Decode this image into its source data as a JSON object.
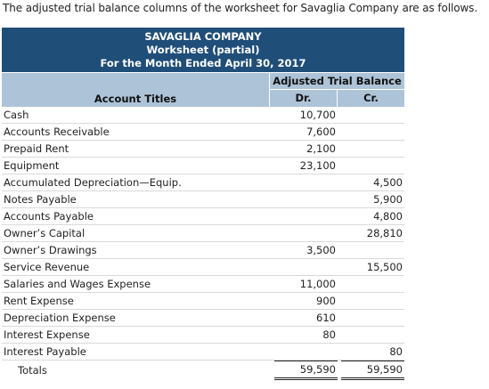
{
  "intro_text": "The adjusted trial balance columns of the worksheet for Savaglia Company are as follows.",
  "worksheet": {
    "company": "SAVAGLIA COMPANY",
    "title": "Worksheet (partial)",
    "period": "For the Month Ended April 30, 2017",
    "section_header": "Adjusted Trial Balance",
    "col_titles": "Account Titles",
    "col_dr": "Dr.",
    "col_cr": "Cr.",
    "colors": {
      "banner": "#1f4e79",
      "header": "#adc3d8"
    },
    "rows": [
      {
        "account": "Cash",
        "dr": "10,700",
        "cr": ""
      },
      {
        "account": "Accounts Receivable",
        "dr": "7,600",
        "cr": ""
      },
      {
        "account": "Prepaid Rent",
        "dr": "2,100",
        "cr": ""
      },
      {
        "account": "Equipment",
        "dr": "23,100",
        "cr": ""
      },
      {
        "account": "Accumulated Depreciation—Equip.",
        "dr": "",
        "cr": "4,500"
      },
      {
        "account": "Notes Payable",
        "dr": "",
        "cr": "5,900"
      },
      {
        "account": "Accounts Payable",
        "dr": "",
        "cr": "4,800"
      },
      {
        "account": "Owner’s Capital",
        "dr": "",
        "cr": "28,810"
      },
      {
        "account": "Owner’s Drawings",
        "dr": "3,500",
        "cr": ""
      },
      {
        "account": "Service Revenue",
        "dr": "",
        "cr": "15,500"
      },
      {
        "account": "Salaries and Wages Expense",
        "dr": "11,000",
        "cr": ""
      },
      {
        "account": "Rent Expense",
        "dr": "900",
        "cr": ""
      },
      {
        "account": "Depreciation Expense",
        "dr": "610",
        "cr": ""
      },
      {
        "account": "Interest Expense",
        "dr": "80",
        "cr": ""
      },
      {
        "account": "Interest Payable",
        "dr": "",
        "cr": "80"
      }
    ],
    "totals": {
      "label": "Totals",
      "dr": "59,590",
      "cr": "59,590"
    }
  }
}
